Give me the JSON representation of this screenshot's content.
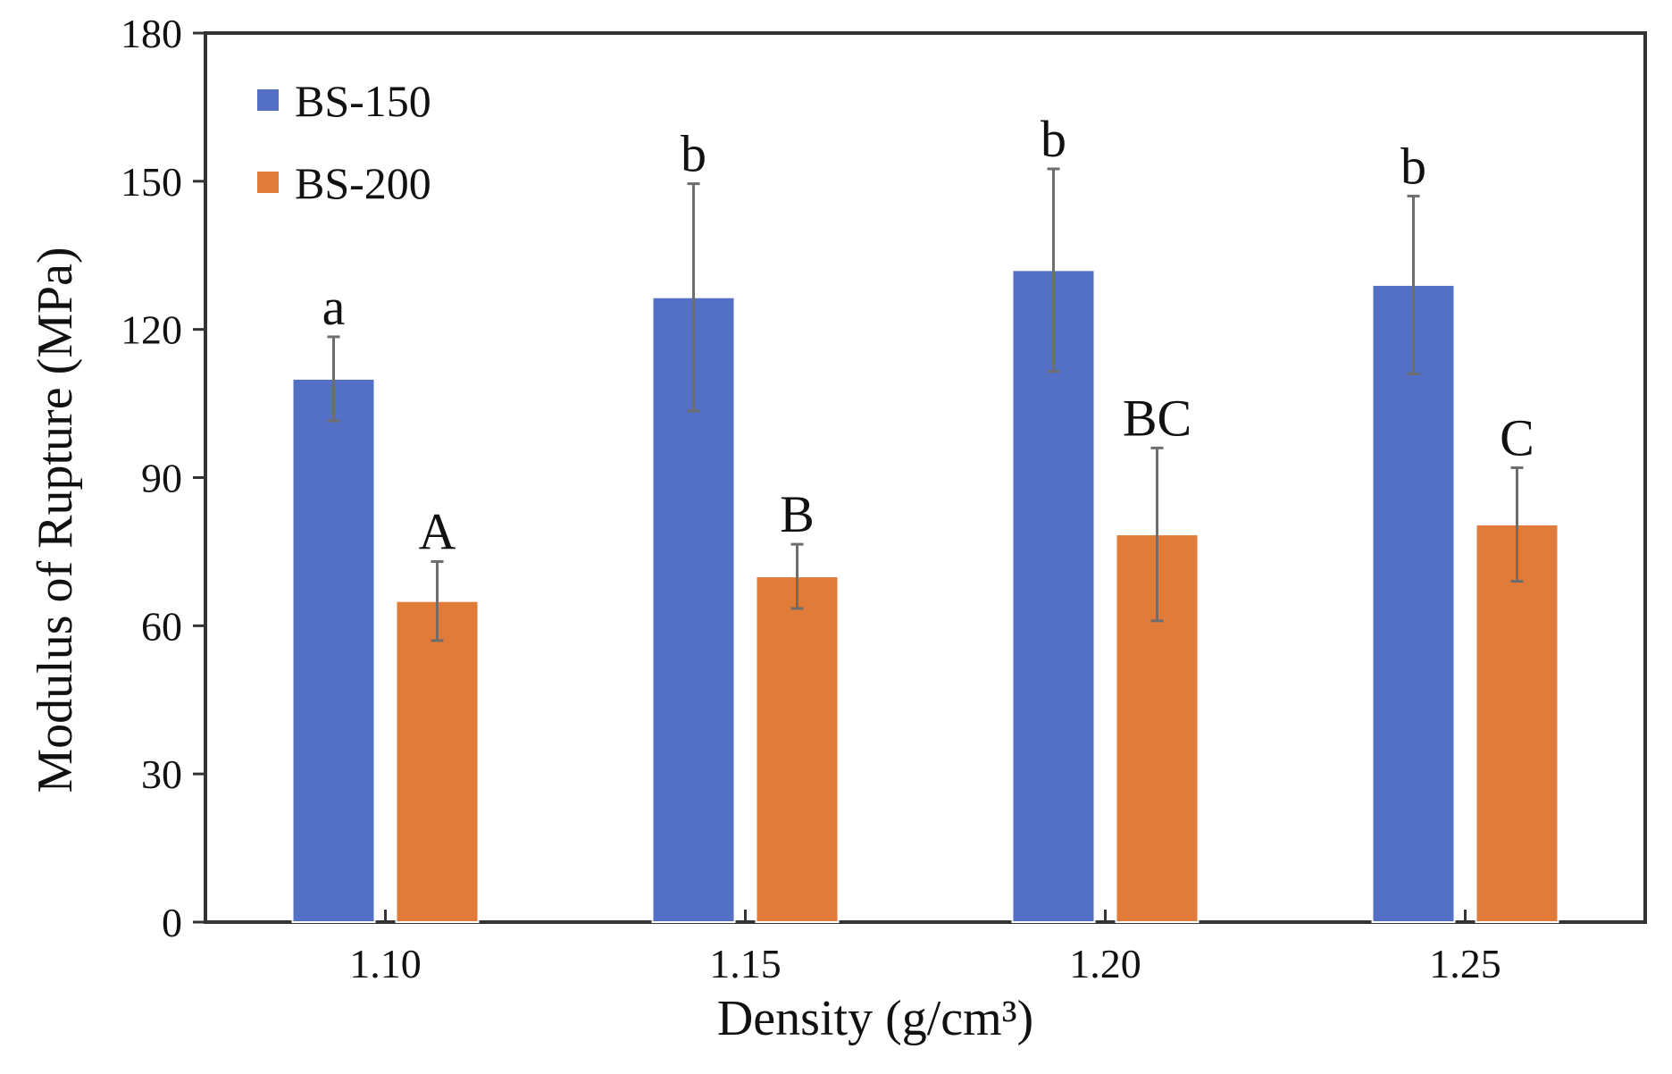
{
  "chart_data": {
    "type": "bar",
    "title": "",
    "xlabel": "Density (g/cm³)",
    "ylabel": "Modulus of Rupture (MPa)",
    "categories": [
      "1.10",
      "1.15",
      "1.20",
      "1.25"
    ],
    "ylim": [
      0,
      180
    ],
    "yticks": [
      "0",
      "30",
      "60",
      "90",
      "120",
      "150",
      "180"
    ],
    "grid": false,
    "legend_position": "top-left",
    "series": [
      {
        "name": "BS-150",
        "color": "#5470c6",
        "values": [
          110,
          126.5,
          132,
          129
        ],
        "errors": [
          8.5,
          23,
          20.5,
          18
        ],
        "labels": [
          "a",
          "b",
          "b",
          "b"
        ]
      },
      {
        "name": "BS-200",
        "color": "#e07b39",
        "values": [
          65,
          70,
          78.5,
          80.5
        ],
        "errors": [
          8,
          6.5,
          17.5,
          11.5
        ],
        "labels": [
          "A",
          "B",
          "BC",
          "C"
        ]
      }
    ]
  }
}
